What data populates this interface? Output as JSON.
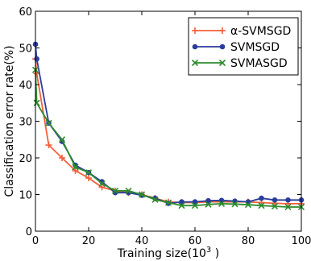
{
  "chart_data": {
    "type": "line",
    "xlabel_pre": "Training size(10",
    "xlabel_sup": "3",
    "xlabel_post": " )",
    "ylabel": "Classification error rate(%)",
    "xlim": [
      0,
      100
    ],
    "ylim": [
      0,
      60
    ],
    "x_ticks": [
      "0",
      "20",
      "40",
      "60",
      "80",
      "100"
    ],
    "y_ticks": [
      "0",
      "10",
      "20",
      "30",
      "40",
      "50",
      "60"
    ],
    "legend_position": "top-right",
    "series": [
      {
        "name": "α-SVMSGD",
        "color": "#f4603a",
        "marker": "plus",
        "points": [
          [
            0,
            47
          ],
          [
            0.5,
            43
          ],
          [
            5,
            23.5
          ],
          [
            10,
            20
          ],
          [
            15,
            16.5
          ],
          [
            20,
            14.5
          ],
          [
            25,
            12
          ],
          [
            30,
            11
          ],
          [
            35,
            10.5
          ],
          [
            40,
            10
          ],
          [
            45,
            9
          ],
          [
            50,
            8
          ],
          [
            55,
            7.8
          ],
          [
            60,
            7.8
          ],
          [
            65,
            8
          ],
          [
            70,
            8
          ],
          [
            75,
            8
          ],
          [
            80,
            8
          ],
          [
            85,
            7.8
          ],
          [
            90,
            7.6
          ],
          [
            95,
            7.5
          ],
          [
            100,
            7.5
          ]
        ]
      },
      {
        "name": "SVMSGD",
        "color": "#2b3d9b",
        "marker": "dot",
        "points": [
          [
            0,
            51
          ],
          [
            0.5,
            47
          ],
          [
            5,
            29.5
          ],
          [
            10,
            24.5
          ],
          [
            15,
            18
          ],
          [
            20,
            16
          ],
          [
            25,
            13.5
          ],
          [
            30,
            10.5
          ],
          [
            35,
            10.5
          ],
          [
            40,
            9.8
          ],
          [
            45,
            9
          ],
          [
            50,
            7.6
          ],
          [
            55,
            8
          ],
          [
            60,
            8
          ],
          [
            65,
            8.3
          ],
          [
            70,
            8.4
          ],
          [
            75,
            8.2
          ],
          [
            80,
            8
          ],
          [
            85,
            9
          ],
          [
            90,
            8.5
          ],
          [
            95,
            8.5
          ],
          [
            100,
            8.5
          ]
        ]
      },
      {
        "name": "SVMASGD",
        "color": "#2e8b2e",
        "marker": "x",
        "points": [
          [
            0,
            44
          ],
          [
            0.5,
            35
          ],
          [
            5,
            29.5
          ],
          [
            10,
            25
          ],
          [
            15,
            17.5
          ],
          [
            20,
            16
          ],
          [
            25,
            13
          ],
          [
            30,
            11
          ],
          [
            35,
            11
          ],
          [
            40,
            10
          ],
          [
            45,
            8.6
          ],
          [
            50,
            7.8
          ],
          [
            55,
            7
          ],
          [
            60,
            7
          ],
          [
            65,
            7.3
          ],
          [
            70,
            7.5
          ],
          [
            75,
            7.4
          ],
          [
            80,
            7.2
          ],
          [
            85,
            7
          ],
          [
            90,
            6.8
          ],
          [
            95,
            6.6
          ],
          [
            100,
            6.6
          ]
        ]
      }
    ]
  }
}
